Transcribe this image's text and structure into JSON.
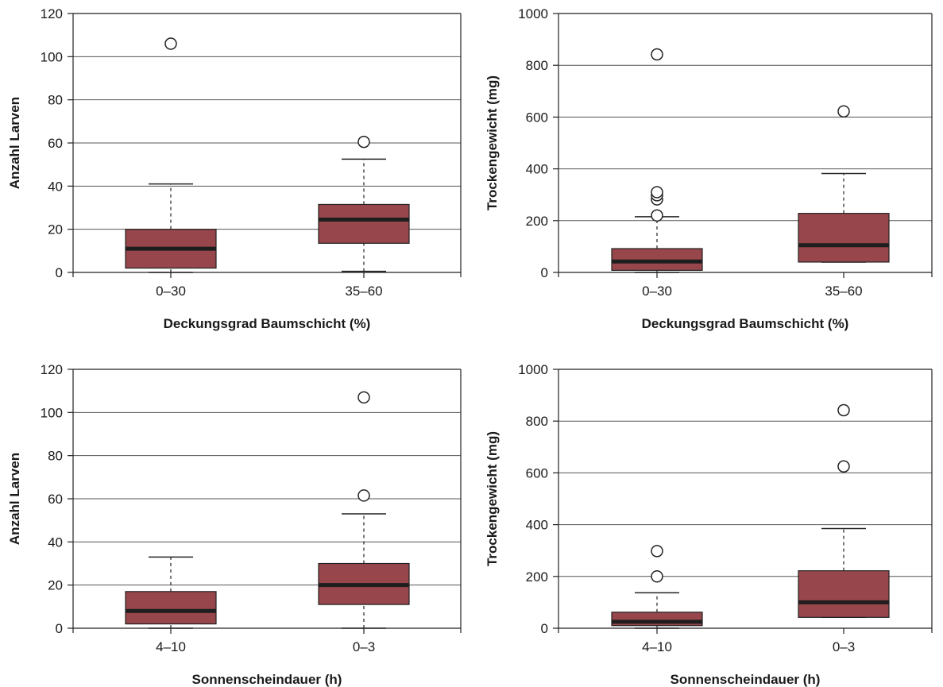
{
  "colors": {
    "box_fill": "#97464b",
    "grid": "#555555",
    "axis": "#222222"
  },
  "chart_data": [
    {
      "type": "boxplot",
      "xlabel": "Deckungsgrad Baumschicht (%)",
      "ylabel": "Anzahl Larven",
      "ylim": [
        0,
        120
      ],
      "yticks": [
        0,
        20,
        40,
        60,
        80,
        100,
        120
      ],
      "grid": "horizontal",
      "categories": [
        "0–30",
        "35–60"
      ],
      "boxes": [
        {
          "category": "0–30",
          "whisker_low": 0,
          "q1": 2,
          "median": 11,
          "q3": 20,
          "whisker_high": 41,
          "outliers": [
            106
          ]
        },
        {
          "category": "35–60",
          "whisker_low": 0.5,
          "q1": 13.5,
          "median": 24.5,
          "q3": 31.5,
          "whisker_high": 52.5,
          "outliers": [
            60.5
          ]
        }
      ]
    },
    {
      "type": "boxplot",
      "xlabel": "Deckungsgrad Baumschicht (%)",
      "ylabel": "Trockengewicht (mg)",
      "ylim": [
        0,
        1000
      ],
      "yticks": [
        0,
        200,
        400,
        600,
        800,
        1000
      ],
      "grid": "horizontal",
      "categories": [
        "0–30",
        "35–60"
      ],
      "boxes": [
        {
          "category": "0–30",
          "whisker_low": 0,
          "q1": 8,
          "median": 42,
          "q3": 92,
          "whisker_high": 215,
          "outliers": [
            220,
            282,
            298,
            310,
            842
          ]
        },
        {
          "category": "35–60",
          "whisker_low": 40,
          "q1": 40,
          "median": 105,
          "q3": 228,
          "whisker_high": 382,
          "outliers": [
            622
          ]
        }
      ]
    },
    {
      "type": "boxplot",
      "xlabel": "Sonnenscheindauer (h)",
      "ylabel": "Anzahl Larven",
      "ylim": [
        0,
        120
      ],
      "yticks": [
        0,
        20,
        40,
        60,
        80,
        100,
        120
      ],
      "grid": "horizontal",
      "categories": [
        "4–10",
        "0–3"
      ],
      "boxes": [
        {
          "category": "4–10",
          "whisker_low": 0,
          "q1": 2,
          "median": 8,
          "q3": 17,
          "whisker_high": 33,
          "outliers": []
        },
        {
          "category": "0–3",
          "whisker_low": 0,
          "q1": 11,
          "median": 20,
          "q3": 30,
          "whisker_high": 53,
          "outliers": [
            61.5,
            107
          ]
        }
      ]
    },
    {
      "type": "boxplot",
      "xlabel": "Sonnenscheindauer (h)",
      "ylabel": "Trockengewicht (mg)",
      "ylim": [
        0,
        1000
      ],
      "yticks": [
        0,
        200,
        400,
        600,
        800,
        1000
      ],
      "grid": "horizontal",
      "categories": [
        "4–10",
        "0–3"
      ],
      "boxes": [
        {
          "category": "4–10",
          "whisker_low": 0,
          "q1": 10,
          "median": 25,
          "q3": 62,
          "whisker_high": 137,
          "outliers": [
            200,
            298
          ]
        },
        {
          "category": "0–3",
          "whisker_low": 42,
          "q1": 42,
          "median": 100,
          "q3": 222,
          "whisker_high": 385,
          "outliers": [
            625,
            842
          ]
        }
      ]
    }
  ]
}
